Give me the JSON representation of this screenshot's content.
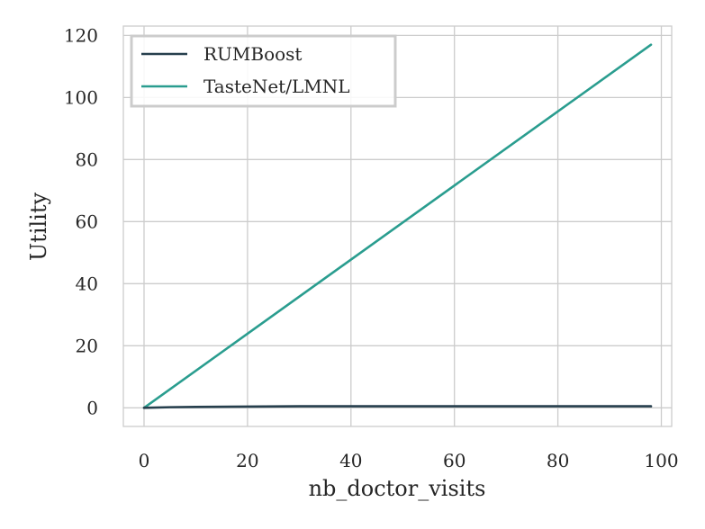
{
  "chart_data": {
    "type": "line",
    "xlabel": "nb_doctor_visits",
    "ylabel": "Utility",
    "xlim": [
      -4,
      102
    ],
    "ylim": [
      -6,
      123
    ],
    "xticks": [
      0,
      20,
      40,
      60,
      80,
      100
    ],
    "yticks": [
      0,
      20,
      40,
      60,
      80,
      100,
      120
    ],
    "grid": true,
    "legend_position": "top-left",
    "series": [
      {
        "name": "RUMBoost",
        "color": "#263f4d",
        "x": [
          0,
          5,
          10,
          20,
          30,
          40,
          50,
          60,
          70,
          80,
          90,
          98
        ],
        "y": [
          0,
          0.2,
          0.3,
          0.4,
          0.5,
          0.5,
          0.5,
          0.5,
          0.5,
          0.5,
          0.5,
          0.5
        ]
      },
      {
        "name": "TasteNet/LMNL",
        "color": "#2a9d8f",
        "x": [
          0,
          98
        ],
        "y": [
          0,
          117
        ]
      }
    ]
  }
}
